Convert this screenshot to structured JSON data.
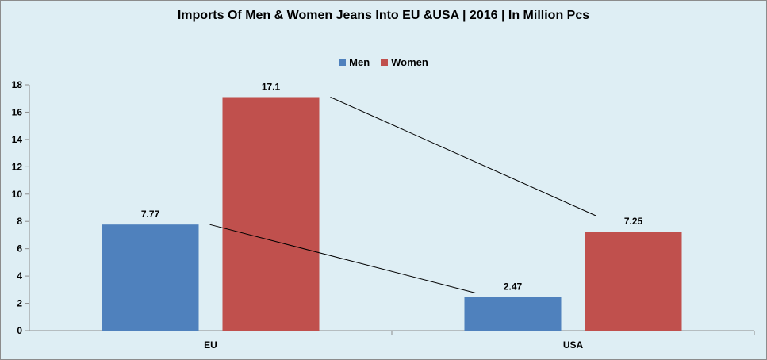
{
  "chart_data": {
    "type": "bar",
    "title": "Imports Of Men & Women Jeans Into EU &USA  | 2016 | In Million Pcs",
    "categories": [
      "EU",
      "USA"
    ],
    "series": [
      {
        "name": "Men",
        "values": [
          7.77,
          2.47
        ],
        "labels": [
          "7.77",
          "2.47"
        ],
        "color": "#4f81bd"
      },
      {
        "name": "Women",
        "values": [
          17.1,
          7.25
        ],
        "labels": [
          "17.1",
          "7.25"
        ],
        "color": "#c0504d"
      }
    ],
    "ylim": [
      0,
      18
    ],
    "yticks": [
      "0",
      "2",
      "4",
      "6",
      "8",
      "10",
      "12",
      "14",
      "16",
      "18"
    ],
    "grid": false,
    "legend_position": "top",
    "trend_lines": true
  }
}
